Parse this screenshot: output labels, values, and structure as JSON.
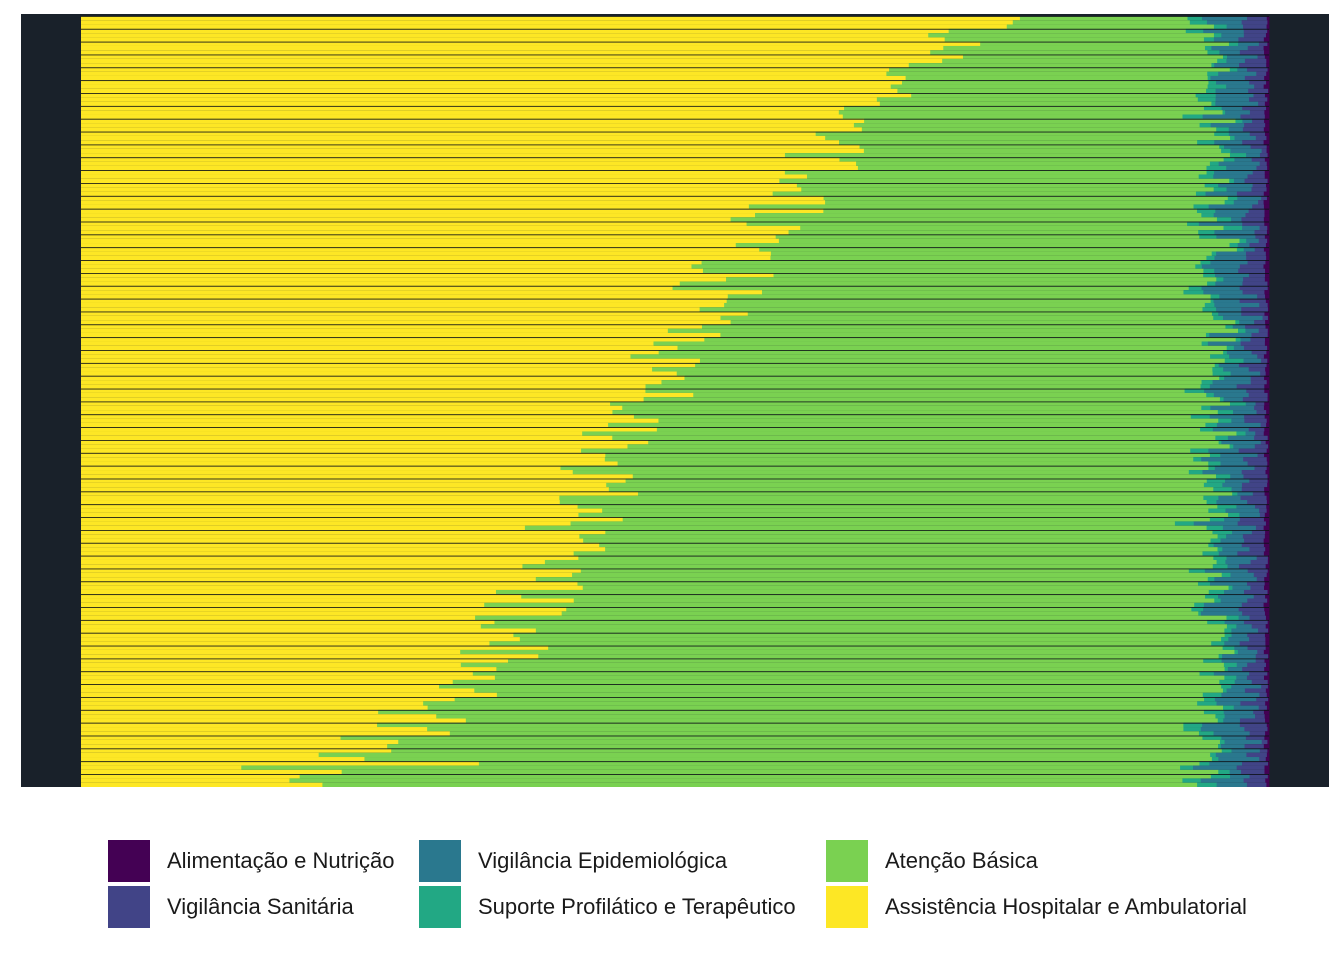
{
  "chart_data": {
    "type": "bar",
    "orientation": "horizontal",
    "stacked": true,
    "normalized": true,
    "sorted": "descending by Assistência Hospitalar e Ambulatorial share",
    "bar_count": 180,
    "xlim": [
      0,
      1
    ],
    "title": "",
    "xlabel": "",
    "ylabel": "",
    "grid": false,
    "legend_position": "bottom",
    "panel_background": "#19212a",
    "bar_separator_color": "#0d1117",
    "series": [
      {
        "name": "Alimentação e Nutrição",
        "color": "#440154",
        "mean_share": 0.002
      },
      {
        "name": "Vigilância Sanitária",
        "color": "#414487",
        "mean_share": 0.012
      },
      {
        "name": "Vigilância Epidemiológica",
        "color": "#2a788e",
        "mean_share": 0.02
      },
      {
        "name": "Suporte Profilático e Terapêutico",
        "color": "#22a884",
        "mean_share": 0.01
      },
      {
        "name": "Atenção Básica",
        "color": "#7ad151",
        "mean_share": 0.58
      },
      {
        "name": "Assistência Hospitalar e Ambulatorial",
        "color": "#fde725",
        "mean_share": 0.376
      }
    ],
    "hospitalar_share_range": [
      0.0,
      0.79
    ]
  },
  "legend": {
    "items": [
      {
        "label": "Alimentação e Nutrição",
        "color": "#440154"
      },
      {
        "label": "Vigilância Sanitária",
        "color": "#414487"
      },
      {
        "label": "Vigilância Epidemiológica",
        "color": "#2a788e"
      },
      {
        "label": "Suporte Profilático e Terapêutico",
        "color": "#22a884"
      },
      {
        "label": "Atenção Básica",
        "color": "#7ad151"
      },
      {
        "label": "Assistência Hospitalar e Ambulatorial",
        "color": "#fde725"
      }
    ]
  }
}
